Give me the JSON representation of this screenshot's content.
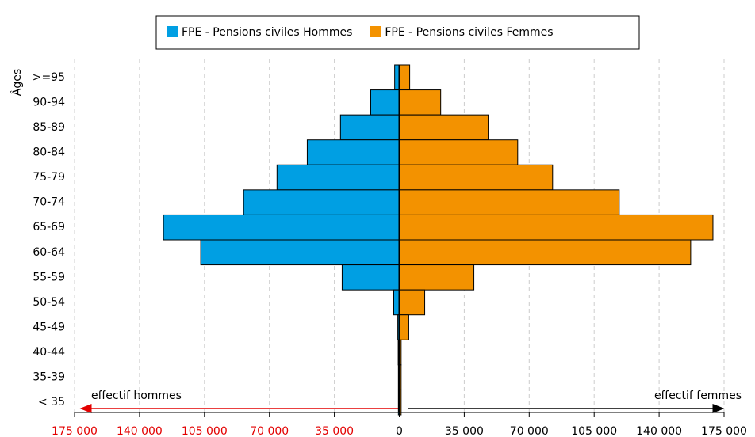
{
  "chart_data": {
    "type": "pyramid",
    "y_label": "Âges",
    "categories": [
      ">=95",
      "90-94",
      "85-89",
      "80-84",
      "75-79",
      "70-74",
      "65-69",
      "60-64",
      "55-59",
      "50-54",
      "45-49",
      "40-44",
      "35-39",
      "< 35"
    ],
    "series": [
      {
        "name": "FPE - Pensions civiles Hommes",
        "color": "#009fe3",
        "side": "left",
        "values": [
          2500,
          15400,
          31700,
          49600,
          65900,
          83900,
          127100,
          107000,
          30800,
          3000,
          800,
          600,
          500,
          500
        ]
      },
      {
        "name": "FPE - Pensions civiles Femmes",
        "color": "#f39200",
        "side": "right",
        "values": [
          5600,
          22300,
          47900,
          63800,
          82600,
          118500,
          169000,
          157000,
          40200,
          13700,
          5100,
          1000,
          1000,
          1000
        ]
      }
    ],
    "xlim": [
      -175000,
      175000
    ],
    "xticks": [
      {
        "value": -175000,
        "label": "175 000"
      },
      {
        "value": -140000,
        "label": "140 000"
      },
      {
        "value": -105000,
        "label": "105 000"
      },
      {
        "value": -70000,
        "label": "70 000"
      },
      {
        "value": -35000,
        "label": "35 000"
      },
      0,
      {
        "value": 35000,
        "label": "35 000"
      },
      {
        "value": 70000,
        "label": "70 000"
      },
      {
        "value": 105000,
        "label": "105 000"
      },
      {
        "value": 140000,
        "label": "140 000"
      },
      {
        "value": 175000,
        "label": "175 000"
      }
    ],
    "negative_tick_color": "#e30000",
    "grid": true,
    "annotations": {
      "left": "effectif hommes",
      "right": "effectif femmes"
    }
  }
}
